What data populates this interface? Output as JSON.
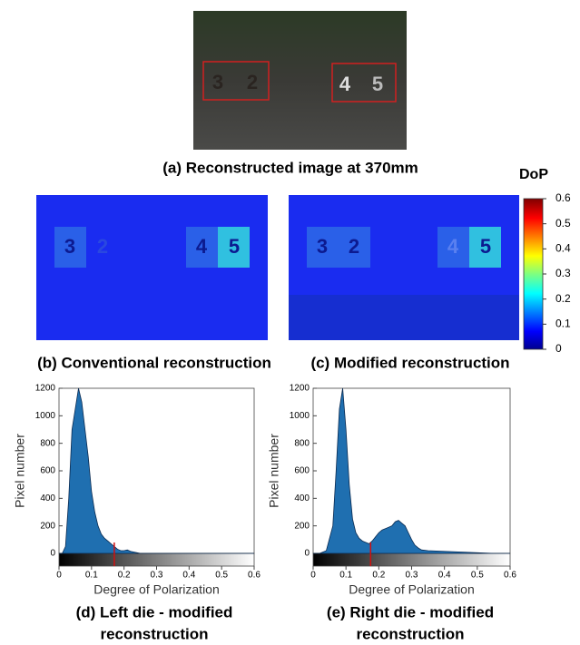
{
  "figure": {
    "panel_a": {
      "caption": "(a) Reconstructed image at 370mm",
      "digits": [
        "3",
        "2",
        "4",
        "5"
      ]
    },
    "panel_b": {
      "caption": "(b) Conventional reconstruction",
      "digits": [
        "3",
        "2",
        "4",
        "5"
      ]
    },
    "panel_c": {
      "caption": "(c) Modified reconstruction",
      "digits": [
        "3",
        "2",
        "4",
        "5"
      ]
    }
  },
  "colorbar": {
    "label": "DoP",
    "lim": [
      0,
      0.6
    ],
    "ticks": [
      0,
      0.1,
      0.2,
      0.3,
      0.4,
      0.5,
      0.6
    ]
  },
  "chart_data": [
    {
      "type": "area",
      "caption": [
        "(d) Left die - modified",
        "reconstruction"
      ],
      "xlabel": "Degree of Polarization",
      "ylabel": "Pixel number",
      "color": "#1f6fb0",
      "x": [
        0,
        0.01,
        0.02,
        0.03,
        0.04,
        0.05,
        0.06,
        0.07,
        0.08,
        0.09,
        0.1,
        0.11,
        0.12,
        0.13,
        0.14,
        0.15,
        0.16,
        0.17,
        0.18,
        0.19,
        0.2,
        0.21,
        0.22,
        0.23,
        0.24,
        0.25,
        0.3,
        0.6
      ],
      "values": [
        0,
        0,
        50,
        400,
        900,
        1050,
        1200,
        1100,
        900,
        700,
        450,
        300,
        200,
        140,
        110,
        90,
        70,
        50,
        30,
        20,
        20,
        25,
        15,
        10,
        5,
        0,
        0,
        0
      ],
      "marker_x": 0.17,
      "marker_color": "#d01010",
      "xlim": [
        0,
        0.6
      ],
      "ylim": [
        0,
        1200
      ],
      "xticks": [
        0,
        0.1,
        0.2,
        0.3,
        0.4,
        0.5,
        0.6
      ],
      "yticks": [
        0,
        200,
        400,
        600,
        800,
        1000,
        1200
      ]
    },
    {
      "type": "area",
      "caption": [
        "(e) Right die - modified",
        "reconstruction"
      ],
      "xlabel": "Degree of Polarization",
      "ylabel": "Pixel number",
      "color": "#1f6fb0",
      "x": [
        0,
        0.02,
        0.04,
        0.06,
        0.07,
        0.08,
        0.09,
        0.1,
        0.11,
        0.12,
        0.13,
        0.14,
        0.15,
        0.16,
        0.17,
        0.18,
        0.19,
        0.2,
        0.21,
        0.22,
        0.23,
        0.24,
        0.25,
        0.26,
        0.27,
        0.28,
        0.29,
        0.3,
        0.31,
        0.32,
        0.33,
        0.35,
        0.4,
        0.45,
        0.5,
        0.55,
        0.6
      ],
      "values": [
        0,
        0,
        20,
        200,
        600,
        1050,
        1200,
        900,
        500,
        250,
        150,
        110,
        90,
        80,
        70,
        90,
        120,
        150,
        170,
        180,
        190,
        200,
        230,
        240,
        220,
        200,
        150,
        100,
        60,
        40,
        25,
        20,
        15,
        10,
        5,
        0,
        0
      ],
      "marker_x": 0.175,
      "marker_color": "#d01010",
      "xlim": [
        0,
        0.6
      ],
      "ylim": [
        0,
        1200
      ],
      "xticks": [
        0,
        0.1,
        0.2,
        0.3,
        0.4,
        0.5,
        0.6
      ],
      "yticks": [
        0,
        200,
        400,
        600,
        800,
        1000,
        1200
      ]
    }
  ]
}
